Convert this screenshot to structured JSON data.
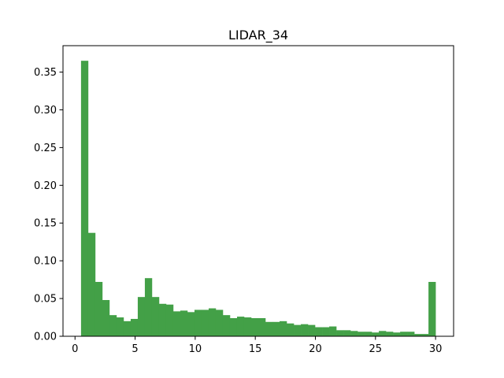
{
  "chart_data": {
    "type": "bar",
    "title": "LIDAR_34",
    "xlabel": "",
    "ylabel": "",
    "xlim": [
      -1.0,
      31.5
    ],
    "ylim": [
      0,
      0.385
    ],
    "x_ticks": [
      0,
      5,
      10,
      15,
      20,
      25,
      30
    ],
    "x_tick_labels": [
      "0",
      "5",
      "10",
      "15",
      "20",
      "25",
      "30"
    ],
    "y_ticks": [
      0.0,
      0.05,
      0.1,
      0.15,
      0.2,
      0.25,
      0.3,
      0.35
    ],
    "y_tick_labels": [
      "0.00",
      "0.05",
      "0.10",
      "0.15",
      "0.20",
      "0.25",
      "0.30",
      "0.35"
    ],
    "grid": false,
    "bar_color": "#43a047",
    "bin_start": 0.5,
    "bin_width": 0.59,
    "values": [
      0.365,
      0.137,
      0.072,
      0.048,
      0.028,
      0.025,
      0.02,
      0.023,
      0.052,
      0.077,
      0.052,
      0.043,
      0.042,
      0.033,
      0.034,
      0.032,
      0.035,
      0.035,
      0.037,
      0.035,
      0.028,
      0.024,
      0.026,
      0.025,
      0.024,
      0.024,
      0.019,
      0.019,
      0.02,
      0.017,
      0.015,
      0.016,
      0.015,
      0.012,
      0.012,
      0.013,
      0.008,
      0.008,
      0.007,
      0.006,
      0.006,
      0.005,
      0.007,
      0.006,
      0.005,
      0.006,
      0.006,
      0.003,
      0.003,
      0.072
    ]
  }
}
